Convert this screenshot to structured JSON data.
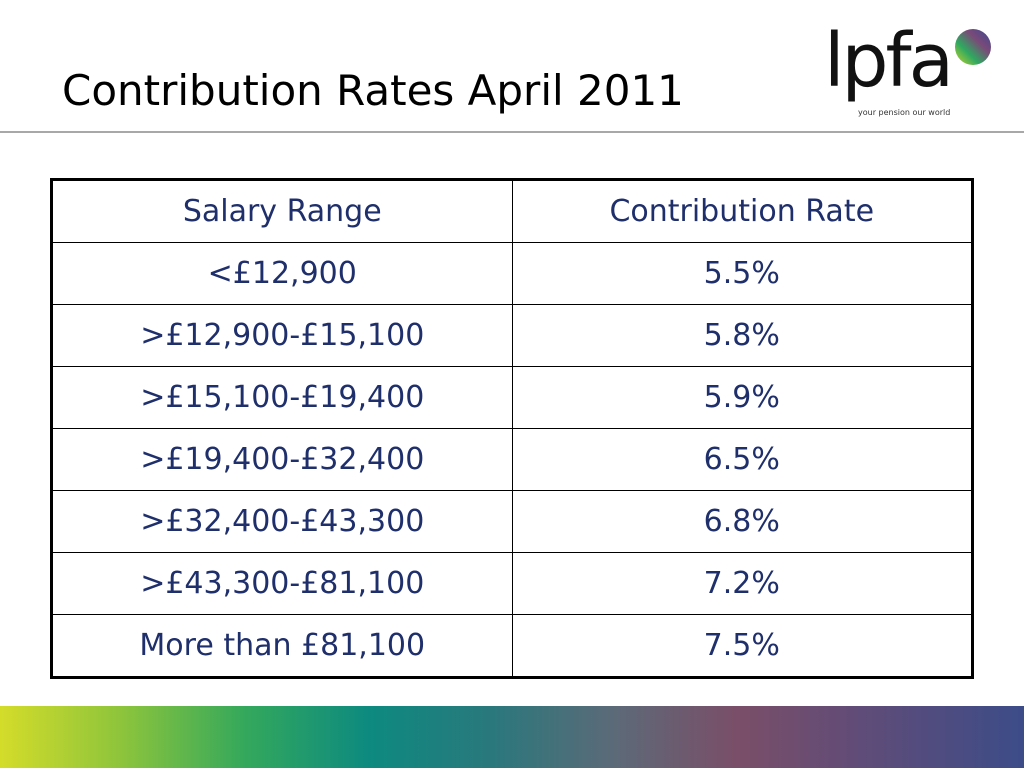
{
  "slide": {
    "title": "Contribution Rates April 2011"
  },
  "logo": {
    "wordmark": "lpfa",
    "tagline": "your pension our world"
  },
  "table": {
    "headers": [
      "Salary Range",
      "Contribution Rate"
    ],
    "rows": [
      [
        "<£12,900",
        "5.5%"
      ],
      [
        ">£12,900-£15,100",
        "5.8%"
      ],
      [
        ">£15,100-£19,400",
        "5.9%"
      ],
      [
        ">£19,400-£32,400",
        "6.5%"
      ],
      [
        ">£32,400-£43,300",
        "6.8%"
      ],
      [
        ">£43,300-£81,100",
        "7.2%"
      ],
      [
        "More than £81,100",
        "7.5%"
      ]
    ]
  },
  "colors": {
    "table_text": "#1f2f6b",
    "band_start": "#d4dc2a",
    "band_end": "#3c4c88"
  }
}
